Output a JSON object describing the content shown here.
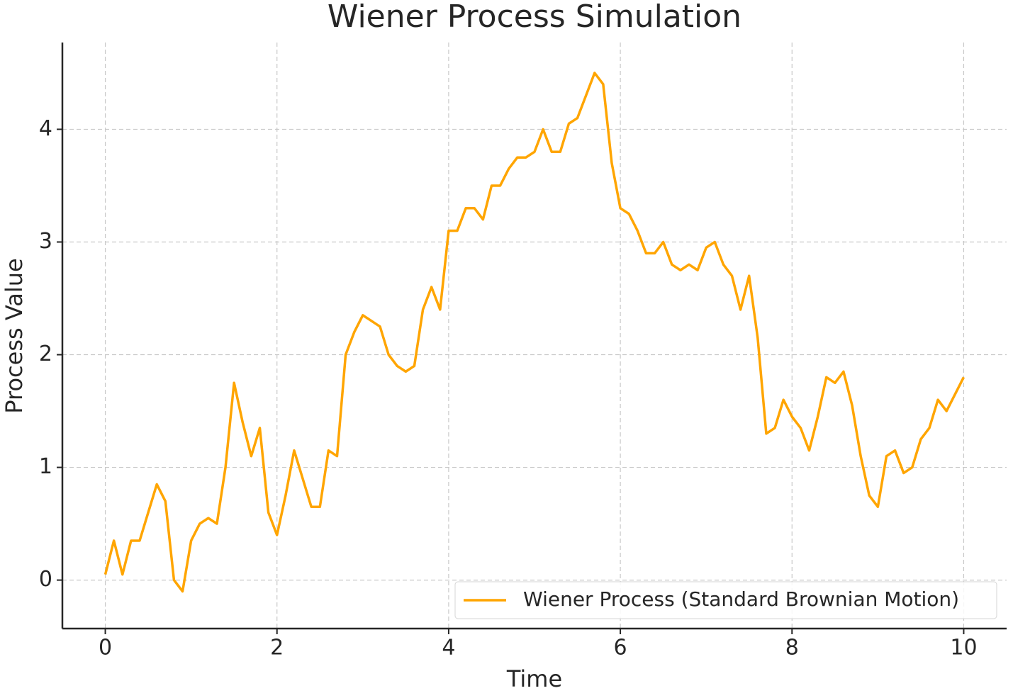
{
  "chart_data": {
    "type": "line",
    "title": "Wiener Process Simulation",
    "x_label": "Time",
    "y_label": "Process Value",
    "x": [
      0,
      0.1,
      0.2,
      0.3,
      0.4,
      0.5,
      0.6,
      0.7,
      0.8,
      0.9,
      1,
      1.1,
      1.2,
      1.3,
      1.4,
      1.5,
      1.6,
      1.7,
      1.8,
      1.9,
      2,
      2.1,
      2.2,
      2.3,
      2.4,
      2.5,
      2.6,
      2.7,
      2.8,
      2.9,
      3,
      3.1,
      3.2,
      3.3,
      3.4,
      3.5,
      3.6,
      3.7,
      3.8,
      3.9,
      4,
      4.1,
      4.2,
      4.3,
      4.4,
      4.5,
      4.6,
      4.7,
      4.8,
      4.9,
      5,
      5.1,
      5.2,
      5.3,
      5.4,
      5.5,
      5.6,
      5.7,
      5.8,
      5.9,
      6,
      6.1,
      6.2,
      6.3,
      6.4,
      6.5,
      6.6,
      6.7,
      6.8,
      6.9,
      7,
      7.1,
      7.2,
      7.3,
      7.4,
      7.5,
      7.6,
      7.7,
      7.8,
      7.9,
      8,
      8.1,
      8.2,
      8.3,
      8.4,
      8.5,
      8.6,
      8.7,
      8.8,
      8.9,
      9,
      9.1,
      9.2,
      9.3,
      9.4,
      9.5,
      9.6,
      9.7,
      9.8,
      9.9,
      10
    ],
    "series": [
      {
        "name": "Wiener Process (Standard Brownian Motion)",
        "color": "#ffa500",
        "values": [
          0.05,
          0.35,
          0.05,
          0.35,
          0.35,
          0.6,
          0.85,
          0.7,
          0.0,
          -0.1,
          0.35,
          0.5,
          0.55,
          0.5,
          1.0,
          1.75,
          1.4,
          1.1,
          1.35,
          0.6,
          0.4,
          0.75,
          1.15,
          0.9,
          0.65,
          0.65,
          1.15,
          1.1,
          2.0,
          2.2,
          2.35,
          2.3,
          2.25,
          2.0,
          1.9,
          1.85,
          1.9,
          2.4,
          2.6,
          2.4,
          3.1,
          3.1,
          3.3,
          3.3,
          3.2,
          3.5,
          3.5,
          3.65,
          3.75,
          3.75,
          3.8,
          4.0,
          3.8,
          3.8,
          4.05,
          4.1,
          4.3,
          4.5,
          4.4,
          3.7,
          3.3,
          3.25,
          3.1,
          2.9,
          2.9,
          3.0,
          2.8,
          2.75,
          2.8,
          2.75,
          2.95,
          3.0,
          2.8,
          2.7,
          2.4,
          2.7,
          2.15,
          1.3,
          1.35,
          1.6,
          1.45,
          1.35,
          1.15,
          1.45,
          1.8,
          1.75,
          1.85,
          1.55,
          1.1,
          0.75,
          0.65,
          1.1,
          1.15,
          0.95,
          1.0,
          1.25,
          1.35,
          1.6,
          1.5,
          1.65,
          1.8
        ]
      }
    ],
    "xlim": [
      -0.5,
      10.5
    ],
    "ylim": [
      -0.43,
      4.77
    ],
    "xticks": [
      0,
      2,
      4,
      6,
      8,
      10
    ],
    "yticks": [
      0,
      1,
      2,
      3,
      4
    ],
    "grid": true,
    "legend": "lower right"
  }
}
